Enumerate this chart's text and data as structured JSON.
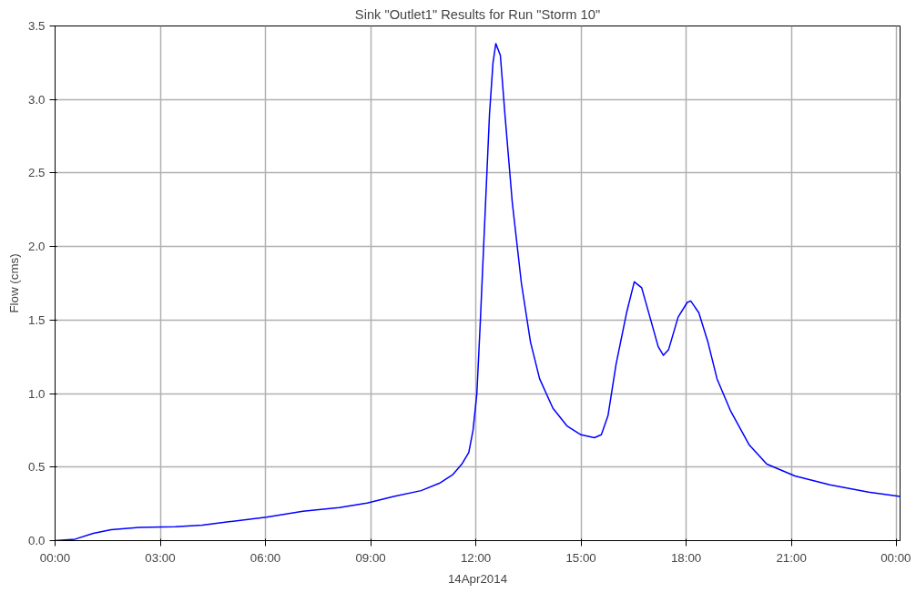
{
  "chart_data": {
    "type": "line",
    "title": "Sink \"Outlet1\" Results for Run \"Storm 10\"",
    "xlabel": "14Apr2014",
    "ylabel": "Flow (cms)",
    "x": [
      0,
      0.57,
      1.09,
      1.6,
      2.4,
      3.43,
      4.2,
      5.0,
      6.03,
      7.07,
      8.1,
      8.9,
      9.66,
      10.44,
      10.96,
      11.35,
      11.6,
      11.8,
      11.92,
      12.03,
      12.13,
      12.26,
      12.39,
      12.49,
      12.57,
      12.7,
      12.83,
      13.04,
      13.3,
      13.56,
      13.82,
      14.2,
      14.6,
      15.0,
      15.38,
      15.58,
      15.77,
      16.0,
      16.3,
      16.52,
      16.73,
      16.99,
      17.2,
      17.35,
      17.5,
      17.77,
      18.03,
      18.13,
      18.36,
      18.62,
      18.88,
      19.27,
      19.8,
      20.3,
      21.1,
      22.1,
      23.2,
      24.1
    ],
    "series": [
      {
        "color": "#0000ff",
        "values": [
          0.0,
          0.01,
          0.05,
          0.075,
          0.09,
          0.095,
          0.105,
          0.13,
          0.16,
          0.2,
          0.225,
          0.255,
          0.3,
          0.34,
          0.39,
          0.45,
          0.52,
          0.6,
          0.75,
          1.0,
          1.5,
          2.2,
          2.9,
          3.25,
          3.38,
          3.3,
          2.9,
          2.3,
          1.75,
          1.35,
          1.1,
          0.9,
          0.78,
          0.72,
          0.7,
          0.72,
          0.85,
          1.2,
          1.55,
          1.76,
          1.72,
          1.5,
          1.32,
          1.26,
          1.3,
          1.52,
          1.62,
          1.63,
          1.55,
          1.35,
          1.1,
          0.88,
          0.65,
          0.52,
          0.44,
          0.38,
          0.33,
          0.3
        ]
      }
    ],
    "xlim": [
      0,
      24.1
    ],
    "ylim": [
      0,
      3.5
    ],
    "xticks": [
      {
        "value": 0,
        "label": "00:00"
      },
      {
        "value": 3,
        "label": "03:00"
      },
      {
        "value": 6,
        "label": "06:00"
      },
      {
        "value": 9,
        "label": "09:00"
      },
      {
        "value": 12,
        "label": "12:00"
      },
      {
        "value": 15,
        "label": "15:00"
      },
      {
        "value": 18,
        "label": "18:00"
      },
      {
        "value": 21,
        "label": "21:00"
      },
      {
        "value": 24,
        "label": "00:00"
      }
    ],
    "yticks": [
      {
        "value": 0,
        "label": "0.0"
      },
      {
        "value": 0.5,
        "label": "0.5"
      },
      {
        "value": 1,
        "label": "1.0"
      },
      {
        "value": 1.5,
        "label": "1.5"
      },
      {
        "value": 2,
        "label": "2.0"
      },
      {
        "value": 2.5,
        "label": "2.5"
      },
      {
        "value": 3,
        "label": "3.0"
      },
      {
        "value": 3.5,
        "label": "3.5"
      }
    ],
    "grid": true,
    "line_style": "solid"
  }
}
